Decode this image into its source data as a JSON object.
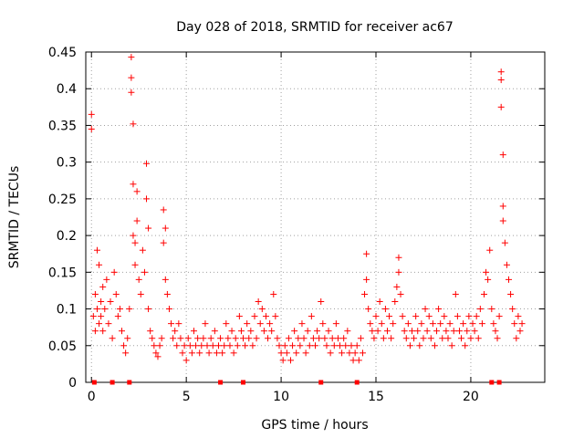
{
  "chart_data": {
    "type": "scatter",
    "title": "Day 028 of 2018, SRMTID for receiver ac67",
    "xlabel": "GPS time / hours",
    "ylabel": "SRMTID / TECUs",
    "xlim": [
      -0.3,
      23.9
    ],
    "ylim": [
      0,
      0.45
    ],
    "x_ticks": [
      0,
      5,
      10,
      15,
      20
    ],
    "y_ticks": [
      0,
      0.05,
      0.1,
      0.15,
      0.2,
      0.25,
      0.3,
      0.35,
      0.4,
      0.45
    ],
    "x_tick_labels": [
      "0",
      "5",
      "10",
      "15",
      "20"
    ],
    "y_tick_labels": [
      "0",
      "0.05",
      "0.1",
      "0.15",
      "0.2",
      "0.25",
      "0.3",
      "0.35",
      "0.4",
      "0.45"
    ],
    "grid": true,
    "marker": "plus",
    "series": [
      {
        "name": "SRMTID",
        "color": "#ff0000",
        "x": [
          0.0,
          0.0,
          0.1,
          0.2,
          0.2,
          0.3,
          0.3,
          0.4,
          0.4,
          0.5,
          0.5,
          0.6,
          0.6,
          0.7,
          0.8,
          0.9,
          1.0,
          1.1,
          1.2,
          1.3,
          1.4,
          1.5,
          1.6,
          1.7,
          1.8,
          1.9,
          2.0,
          2.1,
          2.1,
          2.1,
          2.2,
          2.2,
          2.2,
          2.3,
          2.3,
          2.4,
          2.4,
          2.5,
          2.6,
          2.7,
          2.8,
          2.9,
          2.9,
          3.0,
          3.0,
          3.1,
          3.2,
          3.3,
          3.4,
          3.5,
          3.6,
          3.7,
          3.8,
          3.8,
          3.9,
          3.9,
          4.0,
          4.1,
          4.2,
          4.3,
          4.4,
          4.5,
          4.6,
          4.7,
          4.8,
          4.9,
          5.0,
          5.1,
          5.2,
          5.3,
          5.4,
          5.5,
          5.6,
          5.7,
          5.8,
          5.9,
          6.0,
          6.1,
          6.2,
          6.3,
          6.4,
          6.5,
          6.6,
          6.7,
          6.8,
          6.9,
          7.0,
          7.1,
          7.2,
          7.3,
          7.4,
          7.5,
          7.6,
          7.7,
          7.8,
          7.9,
          8.0,
          8.1,
          8.2,
          8.3,
          8.4,
          8.5,
          8.6,
          8.7,
          8.8,
          8.9,
          9.0,
          9.1,
          9.2,
          9.3,
          9.4,
          9.5,
          9.6,
          9.7,
          9.8,
          9.9,
          10.0,
          10.1,
          10.2,
          10.3,
          10.4,
          10.5,
          10.6,
          10.7,
          10.8,
          10.9,
          11.0,
          11.1,
          11.2,
          11.3,
          11.4,
          11.5,
          11.6,
          11.7,
          11.8,
          11.9,
          12.0,
          12.1,
          12.2,
          12.3,
          12.4,
          12.5,
          12.6,
          12.7,
          12.8,
          12.9,
          13.0,
          13.1,
          13.2,
          13.3,
          13.4,
          13.5,
          13.6,
          13.7,
          13.8,
          13.9,
          14.0,
          14.1,
          14.2,
          14.3,
          14.4,
          14.5,
          14.5,
          14.6,
          14.7,
          14.8,
          14.9,
          15.0,
          15.1,
          15.2,
          15.3,
          15.4,
          15.5,
          15.6,
          15.7,
          15.8,
          15.9,
          16.0,
          16.1,
          16.2,
          16.2,
          16.3,
          16.4,
          16.5,
          16.6,
          16.7,
          16.8,
          16.9,
          17.0,
          17.1,
          17.2,
          17.3,
          17.4,
          17.5,
          17.6,
          17.7,
          17.8,
          17.9,
          18.0,
          18.1,
          18.2,
          18.3,
          18.4,
          18.5,
          18.6,
          18.7,
          18.8,
          18.9,
          19.0,
          19.1,
          19.2,
          19.3,
          19.4,
          19.5,
          19.6,
          19.7,
          19.8,
          19.9,
          20.0,
          20.1,
          20.2,
          20.3,
          20.4,
          20.5,
          20.6,
          20.7,
          20.8,
          20.9,
          21.0,
          21.1,
          21.2,
          21.3,
          21.4,
          21.5,
          21.6,
          21.6,
          21.6,
          21.7,
          21.7,
          21.7,
          21.8,
          21.9,
          22.0,
          22.1,
          22.2,
          22.3,
          22.4,
          22.5,
          22.6,
          22.7
        ],
        "y": [
          0.365,
          0.345,
          0.09,
          0.12,
          0.07,
          0.18,
          0.1,
          0.08,
          0.16,
          0.11,
          0.09,
          0.13,
          0.07,
          0.1,
          0.14,
          0.08,
          0.11,
          0.06,
          0.15,
          0.12,
          0.09,
          0.1,
          0.07,
          0.05,
          0.04,
          0.06,
          0.1,
          0.443,
          0.415,
          0.395,
          0.352,
          0.27,
          0.2,
          0.19,
          0.16,
          0.26,
          0.22,
          0.14,
          0.12,
          0.18,
          0.15,
          0.298,
          0.25,
          0.21,
          0.1,
          0.07,
          0.06,
          0.05,
          0.04,
          0.035,
          0.05,
          0.06,
          0.235,
          0.19,
          0.21,
          0.14,
          0.12,
          0.1,
          0.08,
          0.06,
          0.07,
          0.05,
          0.08,
          0.06,
          0.04,
          0.05,
          0.03,
          0.06,
          0.05,
          0.04,
          0.07,
          0.05,
          0.06,
          0.04,
          0.05,
          0.06,
          0.08,
          0.05,
          0.04,
          0.06,
          0.05,
          0.07,
          0.04,
          0.05,
          0.06,
          0.04,
          0.05,
          0.08,
          0.06,
          0.05,
          0.07,
          0.04,
          0.06,
          0.05,
          0.09,
          0.07,
          0.06,
          0.05,
          0.08,
          0.06,
          0.07,
          0.05,
          0.09,
          0.06,
          0.11,
          0.08,
          0.1,
          0.07,
          0.09,
          0.06,
          0.08,
          0.07,
          0.12,
          0.09,
          0.06,
          0.05,
          0.04,
          0.03,
          0.05,
          0.04,
          0.06,
          0.03,
          0.05,
          0.07,
          0.04,
          0.06,
          0.05,
          0.08,
          0.06,
          0.04,
          0.07,
          0.05,
          0.09,
          0.06,
          0.05,
          0.07,
          0.06,
          0.11,
          0.08,
          0.06,
          0.05,
          0.07,
          0.04,
          0.06,
          0.05,
          0.08,
          0.06,
          0.05,
          0.04,
          0.06,
          0.05,
          0.07,
          0.04,
          0.05,
          0.03,
          0.04,
          0.05,
          0.03,
          0.06,
          0.04,
          0.12,
          0.175,
          0.14,
          0.1,
          0.08,
          0.07,
          0.06,
          0.09,
          0.07,
          0.11,
          0.08,
          0.06,
          0.1,
          0.07,
          0.09,
          0.06,
          0.08,
          0.11,
          0.13,
          0.17,
          0.15,
          0.12,
          0.09,
          0.07,
          0.06,
          0.08,
          0.05,
          0.07,
          0.06,
          0.09,
          0.07,
          0.05,
          0.08,
          0.06,
          0.1,
          0.07,
          0.09,
          0.06,
          0.08,
          0.05,
          0.07,
          0.1,
          0.08,
          0.06,
          0.09,
          0.07,
          0.06,
          0.08,
          0.05,
          0.07,
          0.12,
          0.09,
          0.07,
          0.06,
          0.08,
          0.05,
          0.07,
          0.09,
          0.06,
          0.08,
          0.07,
          0.09,
          0.06,
          0.1,
          0.08,
          0.12,
          0.15,
          0.14,
          0.18,
          0.1,
          0.08,
          0.07,
          0.06,
          0.09,
          0.423,
          0.412,
          0.375,
          0.31,
          0.24,
          0.22,
          0.19,
          0.16,
          0.14,
          0.12,
          0.1,
          0.08,
          0.06,
          0.09,
          0.07,
          0.08
        ]
      }
    ],
    "zero_markers": {
      "color": "#ff0000",
      "x": [
        0.15,
        1.1,
        2.0,
        6.8,
        8.0,
        12.1,
        14.0,
        21.1,
        21.5
      ],
      "y": [
        0,
        0,
        0,
        0,
        0,
        0,
        0,
        0,
        0
      ]
    }
  }
}
